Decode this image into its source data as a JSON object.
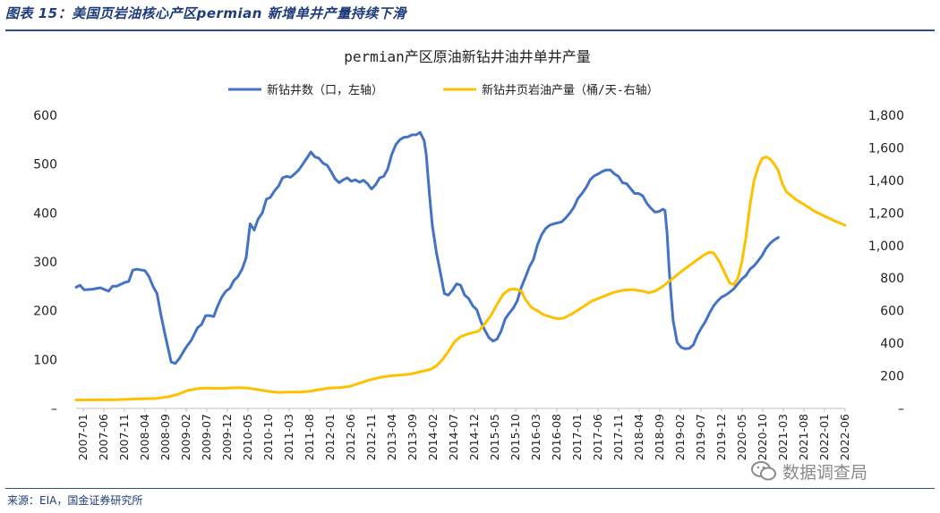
{
  "header": {
    "title": "图表 15：美国页岩油核心产区permian 新增单井产量持续下滑"
  },
  "footer": {
    "source": "来源：EIA，国金证券研究所"
  },
  "watermark": {
    "icon": "wechat-icon",
    "text": "数据调查局"
  },
  "colors": {
    "blue": "#4472C4",
    "yellow": "#FFC000",
    "rule": "#2b4f8a"
  },
  "chart_data": {
    "type": "line",
    "title": "permian产区原油新钻井油井单井产量",
    "legend_position": "top",
    "grid": false,
    "x_labels": [
      "2007-01",
      "2007-06",
      "2007-11",
      "2008-04",
      "2008-09",
      "2009-02",
      "2009-07",
      "2009-12",
      "2010-05",
      "2010-10",
      "2011-03",
      "2011-08",
      "2012-01",
      "2012-06",
      "2012-11",
      "2013-04",
      "2013-09",
      "2014-02",
      "2014-07",
      "2014-12",
      "2015-05",
      "2015-10",
      "2016-03",
      "2016-08",
      "2017-01",
      "2017-06",
      "2017-11",
      "2018-04",
      "2018-09",
      "2019-02",
      "2019-07",
      "2019-12",
      "2020-05",
      "2020-10",
      "2021-03",
      "2021-08",
      "2022-01",
      "2022-06"
    ],
    "y_left": {
      "min": 0,
      "max": 600,
      "ticks": [
        "–",
        "100",
        "200",
        "300",
        "400",
        "500",
        "600"
      ]
    },
    "y_right": {
      "min": 0,
      "max": 1800,
      "ticks": [
        "–",
        "200",
        "400",
        "600",
        "800",
        "1,000",
        "1,200",
        "1,400",
        "1,600",
        "1,800"
      ]
    },
    "series": [
      {
        "name": "新钻井数（口，左轴）",
        "axis": "left",
        "color": "#4472C4",
        "points": [
          [
            0,
            248
          ],
          [
            2,
            252
          ],
          [
            4,
            243
          ],
          [
            8,
            244
          ],
          [
            12,
            247
          ],
          [
            16,
            240
          ],
          [
            18,
            250
          ],
          [
            20,
            250
          ],
          [
            24,
            258
          ],
          [
            26,
            260
          ],
          [
            28,
            283
          ],
          [
            30,
            285
          ],
          [
            34,
            282
          ],
          [
            36,
            270
          ],
          [
            38,
            250
          ],
          [
            40,
            235
          ],
          [
            42,
            190
          ],
          [
            44,
            150
          ],
          [
            47,
            95
          ],
          [
            49,
            92
          ],
          [
            51,
            102
          ],
          [
            54,
            123
          ],
          [
            57,
            140
          ],
          [
            60,
            165
          ],
          [
            62,
            172
          ],
          [
            64,
            190
          ],
          [
            66,
            190
          ],
          [
            68,
            188
          ],
          [
            70,
            210
          ],
          [
            72,
            228
          ],
          [
            74,
            240
          ],
          [
            76,
            246
          ],
          [
            78,
            262
          ],
          [
            80,
            270
          ],
          [
            82,
            285
          ],
          [
            84,
            308
          ],
          [
            86,
            378
          ],
          [
            88,
            365
          ],
          [
            90,
            388
          ],
          [
            92,
            400
          ],
          [
            94,
            428
          ],
          [
            96,
            432
          ],
          [
            98,
            445
          ],
          [
            100,
            455
          ],
          [
            102,
            472
          ],
          [
            104,
            475
          ],
          [
            106,
            473
          ],
          [
            108,
            480
          ],
          [
            110,
            488
          ],
          [
            112,
            500
          ],
          [
            114,
            512
          ],
          [
            116,
            525
          ],
          [
            118,
            515
          ],
          [
            120,
            512
          ],
          [
            122,
            502
          ],
          [
            124,
            498
          ],
          [
            126,
            485
          ],
          [
            128,
            470
          ],
          [
            130,
            462
          ],
          [
            132,
            468
          ],
          [
            134,
            472
          ],
          [
            136,
            465
          ],
          [
            138,
            468
          ],
          [
            140,
            463
          ],
          [
            142,
            467
          ],
          [
            144,
            460
          ],
          [
            146,
            449
          ],
          [
            148,
            458
          ],
          [
            150,
            472
          ],
          [
            152,
            475
          ],
          [
            154,
            490
          ],
          [
            156,
            520
          ],
          [
            158,
            540
          ],
          [
            160,
            550
          ],
          [
            162,
            555
          ],
          [
            164,
            556
          ],
          [
            166,
            560
          ],
          [
            168,
            560
          ],
          [
            170,
            565
          ],
          [
            172,
            548
          ],
          [
            173,
            520
          ],
          [
            174,
            470
          ],
          [
            175,
            420
          ],
          [
            176,
            375
          ],
          [
            178,
            320
          ],
          [
            180,
            278
          ],
          [
            182,
            235
          ],
          [
            184,
            232
          ],
          [
            186,
            242
          ],
          [
            188,
            255
          ],
          [
            190,
            252
          ],
          [
            192,
            232
          ],
          [
            194,
            225
          ],
          [
            196,
            210
          ],
          [
            198,
            202
          ],
          [
            200,
            178
          ],
          [
            202,
            160
          ],
          [
            204,
            145
          ],
          [
            206,
            138
          ],
          [
            208,
            142
          ],
          [
            210,
            158
          ],
          [
            212,
            183
          ],
          [
            214,
            195
          ],
          [
            216,
            205
          ],
          [
            218,
            220
          ],
          [
            220,
            248
          ],
          [
            222,
            268
          ],
          [
            224,
            290
          ],
          [
            226,
            305
          ],
          [
            228,
            335
          ],
          [
            230,
            355
          ],
          [
            232,
            368
          ],
          [
            234,
            375
          ],
          [
            236,
            378
          ],
          [
            238,
            380
          ],
          [
            240,
            382
          ],
          [
            242,
            390
          ],
          [
            244,
            400
          ],
          [
            246,
            412
          ],
          [
            248,
            430
          ],
          [
            250,
            440
          ],
          [
            252,
            452
          ],
          [
            254,
            468
          ],
          [
            256,
            476
          ],
          [
            258,
            480
          ],
          [
            260,
            485
          ],
          [
            262,
            488
          ],
          [
            264,
            488
          ],
          [
            266,
            480
          ],
          [
            268,
            475
          ],
          [
            270,
            462
          ],
          [
            272,
            460
          ],
          [
            274,
            450
          ],
          [
            276,
            440
          ],
          [
            278,
            440
          ],
          [
            280,
            435
          ],
          [
            282,
            420
          ],
          [
            284,
            410
          ],
          [
            286,
            402
          ],
          [
            288,
            403
          ],
          [
            290,
            408
          ],
          [
            291,
            405
          ],
          [
            292,
            360
          ],
          [
            293,
            290
          ],
          [
            294,
            230
          ],
          [
            295,
            180
          ],
          [
            297,
            135
          ],
          [
            299,
            125
          ],
          [
            301,
            122
          ],
          [
            303,
            123
          ],
          [
            305,
            130
          ],
          [
            307,
            150
          ],
          [
            309,
            165
          ],
          [
            311,
            178
          ],
          [
            313,
            195
          ],
          [
            315,
            210
          ],
          [
            317,
            220
          ],
          [
            319,
            228
          ],
          [
            321,
            232
          ],
          [
            323,
            238
          ],
          [
            325,
            245
          ],
          [
            327,
            255
          ],
          [
            329,
            265
          ],
          [
            331,
            272
          ],
          [
            333,
            285
          ],
          [
            335,
            292
          ],
          [
            337,
            302
          ],
          [
            339,
            313
          ],
          [
            341,
            328
          ],
          [
            343,
            338
          ],
          [
            345,
            345
          ],
          [
            347,
            350
          ]
        ]
      },
      {
        "name": "新钻井页岩油产量（桶/天-右轴）",
        "axis": "right",
        "color": "#FFC000",
        "points": [
          [
            0,
            52
          ],
          [
            20,
            53
          ],
          [
            30,
            58
          ],
          [
            40,
            62
          ],
          [
            45,
            70
          ],
          [
            50,
            85
          ],
          [
            55,
            110
          ],
          [
            60,
            122
          ],
          [
            65,
            125
          ],
          [
            70,
            123
          ],
          [
            75,
            125
          ],
          [
            80,
            128
          ],
          [
            85,
            125
          ],
          [
            90,
            115
          ],
          [
            95,
            105
          ],
          [
            100,
            98
          ],
          [
            105,
            100
          ],
          [
            110,
            100
          ],
          [
            115,
            105
          ],
          [
            120,
            115
          ],
          [
            125,
            125
          ],
          [
            130,
            128
          ],
          [
            135,
            135
          ],
          [
            140,
            155
          ],
          [
            145,
            175
          ],
          [
            150,
            190
          ],
          [
            155,
            200
          ],
          [
            160,
            205
          ],
          [
            165,
            210
          ],
          [
            170,
            225
          ],
          [
            175,
            240
          ],
          [
            178,
            260
          ],
          [
            181,
            300
          ],
          [
            184,
            350
          ],
          [
            187,
            410
          ],
          [
            190,
            440
          ],
          [
            193,
            455
          ],
          [
            196,
            465
          ],
          [
            199,
            475
          ],
          [
            202,
            520
          ],
          [
            205,
            570
          ],
          [
            208,
            640
          ],
          [
            211,
            700
          ],
          [
            214,
            730
          ],
          [
            217,
            735
          ],
          [
            220,
            720
          ],
          [
            222,
            670
          ],
          [
            225,
            620
          ],
          [
            228,
            600
          ],
          [
            231,
            575
          ],
          [
            235,
            560
          ],
          [
            238,
            550
          ],
          [
            241,
            555
          ],
          [
            245,
            580
          ],
          [
            250,
            620
          ],
          [
            255,
            660
          ],
          [
            260,
            685
          ],
          [
            265,
            710
          ],
          [
            270,
            725
          ],
          [
            275,
            730
          ],
          [
            280,
            720
          ],
          [
            283,
            710
          ],
          [
            286,
            720
          ],
          [
            290,
            750
          ],
          [
            295,
            800
          ],
          [
            300,
            850
          ],
          [
            305,
            895
          ],
          [
            310,
            940
          ],
          [
            313,
            960
          ],
          [
            315,
            955
          ],
          [
            318,
            900
          ],
          [
            321,
            820
          ],
          [
            323,
            770
          ],
          [
            325,
            760
          ],
          [
            327,
            800
          ],
          [
            329,
            900
          ],
          [
            331,
            1050
          ],
          [
            333,
            1250
          ],
          [
            335,
            1400
          ],
          [
            337,
            1480
          ],
          [
            339,
            1535
          ],
          [
            341,
            1545
          ],
          [
            343,
            1530
          ],
          [
            345,
            1500
          ],
          [
            347,
            1460
          ],
          [
            349,
            1380
          ],
          [
            351,
            1330
          ],
          [
            353,
            1310
          ],
          [
            356,
            1280
          ],
          [
            360,
            1250
          ],
          [
            365,
            1210
          ],
          [
            370,
            1180
          ],
          [
            375,
            1150
          ],
          [
            380,
            1125
          ]
        ]
      }
    ]
  }
}
